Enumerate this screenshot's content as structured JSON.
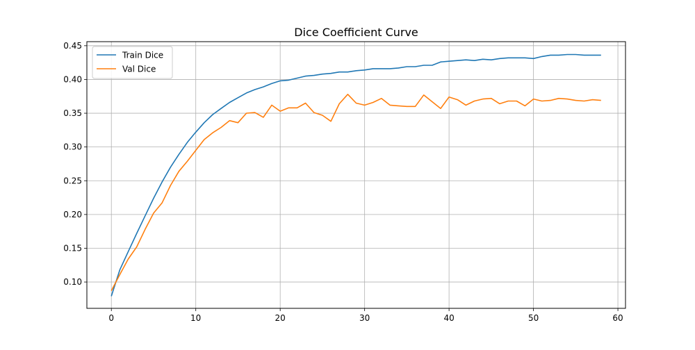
{
  "chart_data": {
    "type": "line",
    "title": "Dice Coefficient Curve",
    "xlabel": "",
    "ylabel": "",
    "xlim": [
      -2.9,
      60.9
    ],
    "ylim": [
      0.061,
      0.456
    ],
    "xticks": [
      0,
      10,
      20,
      30,
      40,
      50,
      60
    ],
    "yticks": [
      0.1,
      0.15,
      0.2,
      0.25,
      0.3,
      0.35,
      0.4,
      0.45
    ],
    "grid": true,
    "legend_position": "top-left",
    "x": [
      0,
      1,
      2,
      3,
      4,
      5,
      6,
      7,
      8,
      9,
      10,
      11,
      12,
      13,
      14,
      15,
      16,
      17,
      18,
      19,
      20,
      21,
      22,
      23,
      24,
      25,
      26,
      27,
      28,
      29,
      30,
      31,
      32,
      33,
      34,
      35,
      36,
      37,
      38,
      39,
      40,
      41,
      42,
      43,
      44,
      45,
      46,
      47,
      48,
      49,
      50,
      51,
      52,
      53,
      54,
      55,
      56,
      57,
      58
    ],
    "series": [
      {
        "name": "Train Dice",
        "color": "#1f77b4",
        "values": [
          0.079,
          0.118,
          0.145,
          0.172,
          0.198,
          0.224,
          0.248,
          0.27,
          0.289,
          0.307,
          0.322,
          0.336,
          0.348,
          0.357,
          0.366,
          0.373,
          0.38,
          0.385,
          0.389,
          0.394,
          0.398,
          0.399,
          0.402,
          0.405,
          0.406,
          0.408,
          0.409,
          0.411,
          0.411,
          0.413,
          0.414,
          0.416,
          0.416,
          0.416,
          0.417,
          0.419,
          0.419,
          0.421,
          0.421,
          0.426,
          0.427,
          0.428,
          0.429,
          0.428,
          0.43,
          0.429,
          0.431,
          0.432,
          0.432,
          0.432,
          0.431,
          0.434,
          0.436,
          0.436,
          0.437,
          0.437,
          0.436,
          0.436,
          0.436
        ]
      },
      {
        "name": "Val Dice",
        "color": "#ff7f0e",
        "values": [
          0.087,
          0.111,
          0.134,
          0.152,
          0.178,
          0.202,
          0.217,
          0.243,
          0.264,
          0.279,
          0.295,
          0.311,
          0.321,
          0.329,
          0.339,
          0.336,
          0.35,
          0.351,
          0.344,
          0.362,
          0.353,
          0.358,
          0.358,
          0.365,
          0.351,
          0.347,
          0.338,
          0.364,
          0.378,
          0.365,
          0.362,
          0.366,
          0.372,
          0.362,
          0.361,
          0.36,
          0.36,
          0.377,
          0.367,
          0.357,
          0.374,
          0.37,
          0.362,
          0.368,
          0.371,
          0.372,
          0.364,
          0.368,
          0.368,
          0.361,
          0.371,
          0.368,
          0.369,
          0.372,
          0.371,
          0.369,
          0.368,
          0.37,
          0.369
        ]
      }
    ]
  }
}
